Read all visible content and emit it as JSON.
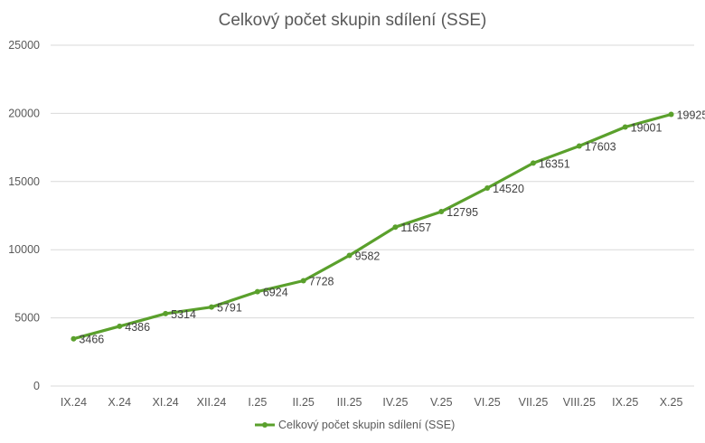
{
  "chart_data": {
    "type": "line",
    "title": "Celkový počet skupin sdílení (SSE)",
    "categories": [
      "IX.24",
      "X.24",
      "XI.24",
      "XII.24",
      "I.25",
      "II.25",
      "III.25",
      "IV.25",
      "V.25",
      "VI.25",
      "VII.25",
      "VIII.25",
      "IX.25",
      "X.25"
    ],
    "series": [
      {
        "name": "Celkový počet skupin sdílení (SSE)",
        "values": [
          3466,
          4386,
          5314,
          5791,
          6924,
          7728,
          9582,
          11657,
          12795,
          14520,
          16351,
          17603,
          19001,
          19925
        ],
        "color": "#5aa02c"
      }
    ],
    "ylim": [
      0,
      25000
    ],
    "yticks": [
      0,
      5000,
      10000,
      15000,
      20000,
      25000
    ],
    "grid": true,
    "legend": "bottom",
    "data_labels": true
  }
}
